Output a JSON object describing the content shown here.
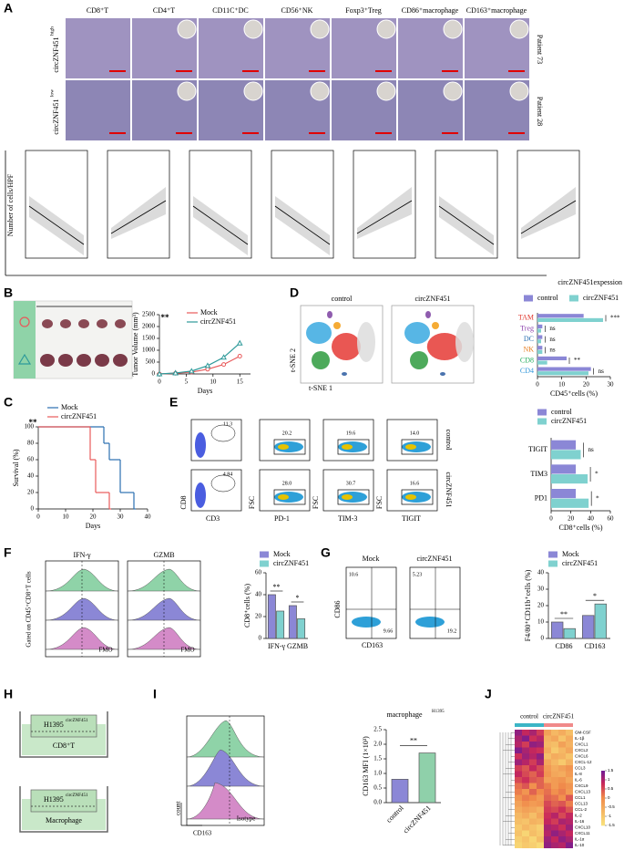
{
  "figure": {
    "panel_letters": [
      "A",
      "B",
      "C",
      "D",
      "E",
      "F",
      "G",
      "H",
      "I",
      "J"
    ],
    "A": {
      "columns": [
        "CD8⁺T",
        "CD4⁺T",
        "CD11C⁺DC",
        "CD56⁺NK",
        "Foxp3⁺Treg",
        "CD86⁺macrophage",
        "CD163⁺macrophage"
      ],
      "rows": [
        "circZNF451",
        "circZNF451"
      ],
      "rows_sup": [
        "high",
        "low"
      ],
      "patients": [
        "Patient 73",
        "Patient 28"
      ],
      "ylabel": "Number of cells/HPF",
      "xlabel": "circZNF451expession"
    },
    "D": {
      "tsne_titles": [
        "control",
        "circZNF451"
      ],
      "tsne_y": "t-SNE 2",
      "tsne_x": "t-SNE 1"
    },
    "E": {
      "gates": [
        "11.3",
        "20.2",
        "19.6",
        "14.0",
        "4.84",
        "28.0",
        "30.7",
        "16.6"
      ],
      "x_labels": [
        "CD3",
        "PD-1",
        "TIM-3",
        "TIGIT"
      ],
      "y_labels": [
        "CD8",
        "FSC",
        "FSC",
        "FSC"
      ],
      "rows": [
        "control",
        "circZNF451"
      ]
    },
    "F": {
      "titles": [
        "IFN-γ",
        "GZMB"
      ],
      "fmo": "FMO",
      "gate": "Gated on CD45⁺CD8⁺T cells"
    },
    "G": {
      "titles": [
        "Mock",
        "circZNF451"
      ],
      "y": "CD86",
      "x": "CD163",
      "quadrants": [
        "10.6",
        "9.66",
        "5.23",
        "19.2"
      ]
    },
    "H": {
      "cell_line": "H1395",
      "cell_line_sup": "circZNF451",
      "targets": [
        "CD8⁺T",
        "Macrophage"
      ]
    },
    "I": {
      "y": "count",
      "x": "CD163",
      "isotype": "Isotype"
    }
  },
  "chart_data": [
    {
      "type": "line",
      "ylabel": "Tumor Volume (mm³)",
      "xlabel": "Days",
      "annotation": "**",
      "x": [
        0,
        3,
        6,
        9,
        12,
        15
      ],
      "xlim": [
        0,
        17
      ],
      "xticks": [
        0,
        5,
        10,
        15
      ],
      "ylim": [
        0,
        2500
      ],
      "yticks": [
        0,
        500,
        1000,
        1500,
        2000,
        2500
      ],
      "series": [
        {
          "name": "Mock",
          "color": "#e8595a",
          "marker": "circle",
          "values": [
            0,
            30,
            80,
            200,
            400,
            750
          ]
        },
        {
          "name": "circZNF451",
          "color": "#2e9a9a",
          "marker": "triangle",
          "values": [
            0,
            40,
            120,
            350,
            700,
            1300
          ]
        }
      ]
    },
    {
      "type": "line",
      "drawstyle": "steps-post",
      "ylabel": "Survival (%)",
      "xlabel": "Days",
      "annotation": "**",
      "xlim": [
        0,
        40
      ],
      "xticks": [
        0,
        10,
        20,
        30,
        40
      ],
      "ylim": [
        0,
        100
      ],
      "yticks": [
        0,
        20,
        40,
        60,
        80,
        100
      ],
      "series": [
        {
          "name": "Mock",
          "color": "#2a6fb0",
          "x": [
            0,
            24,
            26,
            30,
            35
          ],
          "values": [
            100,
            80,
            60,
            20,
            0
          ]
        },
        {
          "name": "circZNF451",
          "color": "#e8595a",
          "x": [
            0,
            19,
            21,
            26
          ],
          "values": [
            100,
            60,
            20,
            0
          ]
        }
      ]
    },
    {
      "type": "hbar",
      "xlabel": "CD45⁺cells (%)",
      "categories": [
        "TAM",
        "Treg",
        "DC",
        "NK",
        "CD8",
        "CD4"
      ],
      "category_colors": [
        "#e0362c",
        "#8e44ad",
        "#2a6fb0",
        "#e67e22",
        "#27ae60",
        "#3498db"
      ],
      "xlim": [
        0,
        30
      ],
      "xticks": [
        0,
        10,
        20,
        30
      ],
      "significance": [
        "***",
        "ns",
        "ns",
        "ns",
        "**",
        "ns"
      ],
      "series": [
        {
          "name": "control",
          "color": "#8b87d6",
          "values": [
            19,
            2,
            2,
            2,
            12,
            22
          ]
        },
        {
          "name": "circZNF451",
          "color": "#7fd1cf",
          "values": [
            27,
            1.5,
            1.5,
            2,
            4,
            21
          ]
        }
      ]
    },
    {
      "type": "hbar",
      "xlabel": "CD8⁺cells (%)",
      "categories": [
        "TIGIT",
        "TIM3",
        "PD1"
      ],
      "xlim": [
        0,
        60
      ],
      "xticks": [
        0,
        20,
        40,
        60
      ],
      "significance": [
        "ns",
        "*",
        "*"
      ],
      "series": [
        {
          "name": "control",
          "color": "#8b87d6",
          "values": [
            25,
            25,
            25
          ]
        },
        {
          "name": "circZNF451",
          "color": "#7fd1cf",
          "values": [
            30,
            37,
            38
          ]
        }
      ]
    },
    {
      "type": "bar",
      "ylabel": "CD8⁺cells (%)",
      "categories": [
        "IFN-γ",
        "GZMB"
      ],
      "ylim": [
        0,
        60
      ],
      "yticks": [
        0,
        20,
        40,
        60
      ],
      "significance": [
        "**",
        "*"
      ],
      "series": [
        {
          "name": "Mock",
          "color": "#8b87d6",
          "values": [
            40,
            30
          ]
        },
        {
          "name": "circZNF451",
          "color": "#7fd1cf",
          "values": [
            25,
            18
          ]
        }
      ]
    },
    {
      "type": "bar",
      "ylabel": "F4/80⁺CD11b⁺cells (%)",
      "categories": [
        "CD86",
        "CD163"
      ],
      "ylim": [
        0,
        40
      ],
      "yticks": [
        0,
        10,
        20,
        30,
        40
      ],
      "significance": [
        "**",
        "*"
      ],
      "series": [
        {
          "name": "Mock",
          "color": "#8b87d6",
          "values": [
            10,
            14
          ]
        },
        {
          "name": "circZNF451",
          "color": "#7fd1cf",
          "values": [
            6,
            21
          ]
        }
      ]
    },
    {
      "type": "bar",
      "title": "macrophage",
      "title_sup": "H1395",
      "ylabel": "CD163 MFI (1×10³)",
      "categories": [
        "control",
        "circZNF451"
      ],
      "values": [
        0.8,
        1.7
      ],
      "colors": [
        "#8b87d6",
        "#8fd0aa"
      ],
      "significance": [
        "**"
      ],
      "ylim": [
        0,
        2.5
      ],
      "yticks": [
        {
          "value": 0,
          "label": "0.0"
        },
        {
          "value": 0.5,
          "label": "0.5"
        },
        {
          "value": 1,
          "label": "1.0"
        },
        {
          "value": 1.5,
          "label": "1.5"
        },
        {
          "value": 2,
          "label": "2.0"
        },
        {
          "value": 2.5,
          "label": "2.5"
        }
      ]
    },
    {
      "type": "heatmap",
      "groups": [
        {
          "name": "control",
          "color": "#3bb5c6",
          "size": 4
        },
        {
          "name": "circZNF451",
          "color": "#f08a8a",
          "size": 4
        }
      ],
      "rows": [
        "GM-CSF",
        "IL-1β",
        "CXCL1",
        "CXCL2",
        "CXCL6",
        "CXCL-12",
        "CCL3",
        "IL-8",
        "IL-6",
        "CXCL9",
        "CXCL13",
        "CCL1",
        "CCL13",
        "CCL-2",
        "IL-2",
        "IL-16",
        "CXCL10",
        "CXCL11",
        "IL-1α",
        "IL-10"
      ],
      "zlim": [
        -1.5,
        1.5
      ],
      "colorbar_ticks": [
        1.5,
        1,
        0.5,
        0,
        -0.5,
        -1,
        -1.5
      ],
      "values": [
        [
          1.2,
          0.8,
          1.0,
          0.6,
          -0.4,
          -0.8,
          -0.6,
          -0.9
        ],
        [
          1.0,
          1.3,
          0.7,
          0.9,
          -0.7,
          -0.5,
          -1.0,
          -0.6
        ],
        [
          0.9,
          0.6,
          1.2,
          1.1,
          -0.8,
          -0.9,
          -0.4,
          -0.7
        ],
        [
          1.3,
          1.0,
          0.8,
          0.7,
          -0.6,
          -1.1,
          -0.8,
          -0.5
        ],
        [
          0.7,
          1.1,
          0.9,
          1.2,
          -0.9,
          -0.6,
          -0.7,
          -1.0
        ],
        [
          1.1,
          0.9,
          0.6,
          1.0,
          -0.5,
          -0.8,
          -1.1,
          -0.7
        ],
        [
          0.6,
          0.4,
          0.8,
          0.5,
          -0.3,
          -0.6,
          -0.4,
          -0.2
        ],
        [
          0.8,
          0.5,
          0.3,
          0.6,
          -0.2,
          -0.5,
          -0.6,
          -0.3
        ],
        [
          0.5,
          0.7,
          0.4,
          0.3,
          -0.4,
          -0.3,
          -0.2,
          -0.5
        ],
        [
          0.2,
          0.4,
          -0.1,
          0.3,
          0.1,
          -0.3,
          0.0,
          -0.2
        ],
        [
          0.1,
          -0.2,
          0.3,
          0.0,
          0.2,
          -0.1,
          0.1,
          -0.3
        ],
        [
          -0.2,
          0.1,
          0.0,
          -0.3,
          0.3,
          0.2,
          -0.1,
          0.4
        ],
        [
          -0.4,
          -0.1,
          -0.3,
          -0.2,
          0.5,
          0.3,
          0.4,
          0.1
        ],
        [
          -0.6,
          -0.4,
          -0.5,
          -0.7,
          0.6,
          0.5,
          0.7,
          0.4
        ],
        [
          -0.8,
          -0.6,
          -0.9,
          -0.5,
          0.7,
          0.9,
          0.5,
          0.8
        ],
        [
          -0.9,
          -1.0,
          -0.7,
          -0.8,
          0.8,
          0.6,
          1.0,
          0.9
        ],
        [
          -1.1,
          -0.8,
          -1.0,
          -1.2,
          1.0,
          0.9,
          0.7,
          1.1
        ],
        [
          -1.0,
          -1.3,
          -0.9,
          -1.1,
          0.9,
          1.2,
          1.0,
          0.8
        ],
        [
          -1.2,
          -1.0,
          -1.3,
          -0.9,
          1.1,
          0.8,
          1.2,
          1.0
        ],
        [
          -1.3,
          -1.1,
          -1.2,
          -1.4,
          1.2,
          1.0,
          0.9,
          1.3
        ]
      ]
    }
  ]
}
